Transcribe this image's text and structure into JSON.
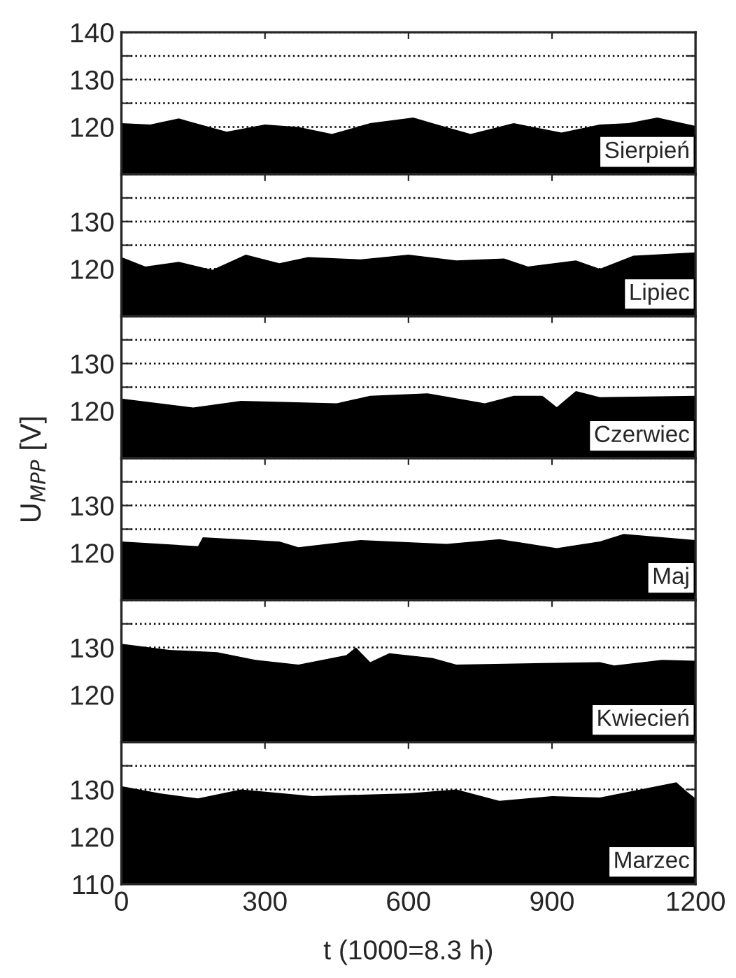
{
  "chart_data": [
    {
      "type": "area",
      "annotations": [
        "Sierpień"
      ],
      "x": [
        0,
        60,
        120,
        140,
        220,
        300,
        370,
        440,
        520,
        610,
        660,
        730,
        820,
        920,
        1000,
        1060,
        1120,
        1200
      ],
      "series": [
        {
          "color": "#000000",
          "values": [
            120.8,
            120.5,
            121.8,
            121.2,
            119.0,
            120.5,
            120.0,
            118.5,
            120.8,
            122.0,
            120.5,
            118.5,
            120.8,
            118.8,
            120.5,
            120.8,
            122.0,
            120.2
          ]
        }
      ],
      "xlim": [
        0,
        1200
      ],
      "xticks": [
        0,
        300,
        600,
        900,
        1200
      ],
      "ylim": [
        110,
        140
      ],
      "yticks": [
        120,
        {
          "value": 125,
          "label": null
        },
        130,
        {
          "value": 135,
          "label": null
        },
        140
      ],
      "grid": "y",
      "line_style": "dotted",
      "tick_labels": "y"
    },
    {
      "type": "area",
      "annotations": [
        "Lipiec"
      ],
      "x": [
        0,
        50,
        120,
        190,
        260,
        330,
        390,
        500,
        600,
        700,
        800,
        850,
        950,
        1000,
        1070,
        1200
      ],
      "series": [
        {
          "color": "#000000",
          "values": [
            122.5,
            120.5,
            121.5,
            119.8,
            123.0,
            121.2,
            122.5,
            122.0,
            123.0,
            121.8,
            122.2,
            120.5,
            121.8,
            120.0,
            122.8,
            123.5
          ]
        }
      ],
      "xlim": [
        0,
        1200
      ],
      "xticks": [
        0,
        300,
        600,
        900,
        1200
      ],
      "ylim": [
        110,
        140
      ],
      "yticks": [
        {
          "value": 110,
          "label": null
        },
        120,
        {
          "value": 125,
          "label": null
        },
        130,
        {
          "value": 135,
          "label": null
        },
        {
          "value": 140,
          "label": null
        }
      ],
      "grid": "y",
      "line_style": "dotted",
      "tick_labels": "y"
    },
    {
      "type": "area",
      "annotations": [
        "Czerwiec"
      ],
      "x": [
        0,
        150,
        250,
        450,
        520,
        640,
        760,
        820,
        880,
        910,
        950,
        1000,
        1200
      ],
      "series": [
        {
          "color": "#000000",
          "values": [
            122.6,
            120.7,
            122.1,
            121.6,
            123.2,
            123.7,
            121.6,
            123.2,
            123.2,
            120.8,
            124.2,
            122.9,
            123.2
          ]
        }
      ],
      "xlim": [
        0,
        1200
      ],
      "xticks": [
        0,
        300,
        600,
        900,
        1200
      ],
      "ylim": [
        110,
        140
      ],
      "yticks": [
        {
          "value": 110,
          "label": null
        },
        120,
        {
          "value": 125,
          "label": null
        },
        130,
        {
          "value": 135,
          "label": null
        },
        {
          "value": 140,
          "label": null
        }
      ],
      "grid": "y",
      "line_style": "dotted",
      "tick_labels": "y"
    },
    {
      "type": "area",
      "annotations": [
        "Maj"
      ],
      "ylabel": "U$_{MPP}$ [V]",
      "x": [
        0,
        160,
        170,
        330,
        370,
        500,
        680,
        790,
        910,
        1000,
        1050,
        1200
      ],
      "series": [
        {
          "color": "#000000",
          "values": [
            122.4,
            121.4,
            123.3,
            122.4,
            121.2,
            122.7,
            121.9,
            122.9,
            121.0,
            122.4,
            124.0,
            122.7
          ]
        }
      ],
      "xlim": [
        0,
        1200
      ],
      "xticks": [
        0,
        300,
        600,
        900,
        1200
      ],
      "ylim": [
        110,
        140
      ],
      "yticks": [
        {
          "value": 110,
          "label": null
        },
        120,
        {
          "value": 125,
          "label": null
        },
        130,
        {
          "value": 135,
          "label": null
        },
        {
          "value": 140,
          "label": null
        }
      ],
      "grid": "y",
      "line_style": "dotted",
      "tick_labels": "y"
    },
    {
      "type": "area",
      "annotations": [
        "Kwiecień"
      ],
      "x": [
        0,
        100,
        200,
        280,
        370,
        470,
        490,
        520,
        560,
        650,
        700,
        1000,
        1030,
        1130,
        1200
      ],
      "series": [
        {
          "color": "#000000",
          "values": [
            130.8,
            129.5,
            129.0,
            127.4,
            126.4,
            128.4,
            130.0,
            126.9,
            128.8,
            127.8,
            126.4,
            126.9,
            126.2,
            127.4,
            127.2
          ]
        }
      ],
      "xlim": [
        0,
        1200
      ],
      "xticks": [
        0,
        300,
        600,
        900,
        1200
      ],
      "ylim": [
        110,
        140
      ],
      "yticks": [
        {
          "value": 110,
          "label": null
        },
        120,
        {
          "value": 125,
          "label": null
        },
        130,
        {
          "value": 135,
          "label": null
        },
        {
          "value": 140,
          "label": null
        }
      ],
      "grid": "y",
      "line_style": "dotted",
      "tick_labels": "y"
    },
    {
      "type": "area",
      "annotations": [
        "Marzec"
      ],
      "xlabel": "t (1000=8.3 h)",
      "x": [
        0,
        80,
        160,
        250,
        400,
        600,
        700,
        790,
        900,
        1000,
        1160,
        1180,
        1200
      ],
      "series": [
        {
          "color": "#000000",
          "values": [
            130.7,
            129.2,
            128.1,
            130.0,
            128.6,
            129.2,
            130.0,
            127.6,
            128.6,
            128.3,
            131.5,
            129.7,
            128.1
          ]
        }
      ],
      "xlim": [
        0,
        1200
      ],
      "xticks": [
        0,
        300,
        600,
        900,
        1200
      ],
      "ylim": [
        110,
        140
      ],
      "yticks": [
        110,
        120,
        {
          "value": 125,
          "label": null
        },
        130,
        {
          "value": 135,
          "label": null
        },
        {
          "value": 140,
          "label": null
        }
      ],
      "grid": "y",
      "line_style": "dotted"
    }
  ]
}
